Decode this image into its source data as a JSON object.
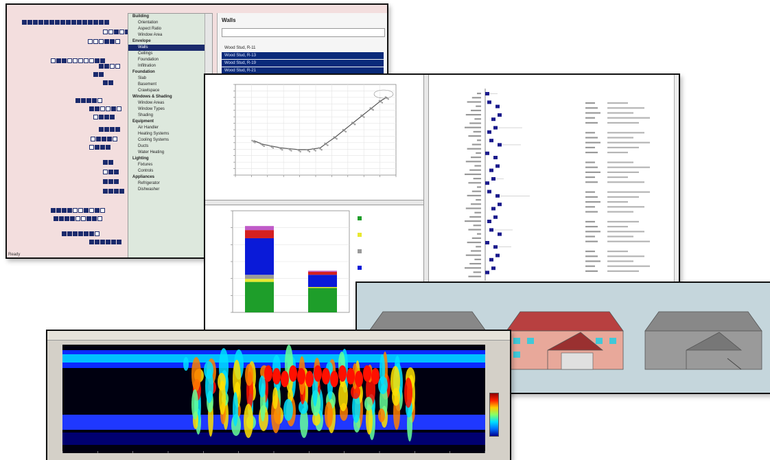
{
  "collage_windows": {
    "optimizer": {
      "tree_items": [
        {
          "label": "Building",
          "group": true
        },
        {
          "label": "Orientation"
        },
        {
          "label": "Aspect Ratio"
        },
        {
          "label": "Window Area"
        },
        {
          "label": "Envelope",
          "group": true
        },
        {
          "label": "Walls",
          "selected": true
        },
        {
          "label": "Ceilings"
        },
        {
          "label": "Foundation"
        },
        {
          "label": "Infiltration"
        },
        {
          "label": "Foundation",
          "group": true
        },
        {
          "label": "Slab"
        },
        {
          "label": "Basement"
        },
        {
          "label": "Crawlspace"
        },
        {
          "label": "Windows & Shading",
          "group": true
        },
        {
          "label": "Window Areas"
        },
        {
          "label": "Window Types"
        },
        {
          "label": "Shading"
        },
        {
          "label": "Equipment",
          "group": true
        },
        {
          "label": "Air Handler"
        },
        {
          "label": "Heating Systems"
        },
        {
          "label": "Cooling Systems"
        },
        {
          "label": "Ducts"
        },
        {
          "label": "Water Heating"
        },
        {
          "label": "Lighting",
          "group": true
        },
        {
          "label": "Fixtures"
        },
        {
          "label": "Controls"
        },
        {
          "label": "Appliances",
          "group": true
        },
        {
          "label": "Refrigerator"
        },
        {
          "label": "Dishwasher"
        }
      ],
      "results_title": "Walls",
      "results_rows": [
        {
          "label": "Wood Stud, R-11",
          "selected": false
        },
        {
          "label": "Wood Stud, R-13",
          "selected": true
        },
        {
          "label": "Wood Stud, R-19",
          "selected": true
        },
        {
          "label": "Wood Stud, R-21",
          "selected": true
        }
      ],
      "status": "Ready"
    },
    "results_viewer": {
      "chart_data": [
        {
          "type": "scatter",
          "description_points": [
            [
              0.6,
              0.38
            ],
            [
              0.9,
              0.34
            ],
            [
              1.2,
              0.32
            ],
            [
              1.5,
              0.3
            ],
            [
              1.8,
              0.29
            ],
            [
              2.1,
              0.28
            ],
            [
              2.4,
              0.28
            ],
            [
              2.6,
              0.29
            ],
            [
              2.8,
              0.3
            ],
            [
              3.0,
              0.35
            ],
            [
              3.3,
              0.42
            ],
            [
              3.6,
              0.5
            ],
            [
              3.9,
              0.58
            ],
            [
              4.2,
              0.66
            ],
            [
              4.5,
              0.74
            ],
            [
              4.8,
              0.82
            ],
            [
              5.0,
              0.86
            ]
          ],
          "xlabel": "",
          "ylabel": "",
          "title": ""
        },
        {
          "type": "bar",
          "categories": [
            "",
            ""
          ],
          "series": [
            {
              "color": "#1e9e2a",
              "values": [
                30,
                24
              ]
            },
            {
              "color": "#e8e830",
              "values": [
                3,
                1
              ]
            },
            {
              "color": "#9a9a9a",
              "values": [
                4,
                0
              ]
            },
            {
              "color": "#0a1ad8",
              "values": [
                36,
                12
              ]
            },
            {
              "color": "#d42020",
              "values": [
                8,
                3
              ]
            },
            {
              "color": "#c05ac8",
              "values": [
                4,
                1
              ]
            }
          ],
          "legend_colors": [
            "#1e9e2a",
            "#e8e830",
            "#9a9a9a",
            "#0a1ad8",
            "#d42020",
            "#c05ac8"
          ],
          "legend_labels": [
            "",
            "",
            "",
            "",
            "",
            ""
          ]
        }
      ]
    },
    "house_renders": {
      "count": 3
    },
    "spectrogram": {
      "toolbar": "",
      "ylabel": ""
    }
  }
}
